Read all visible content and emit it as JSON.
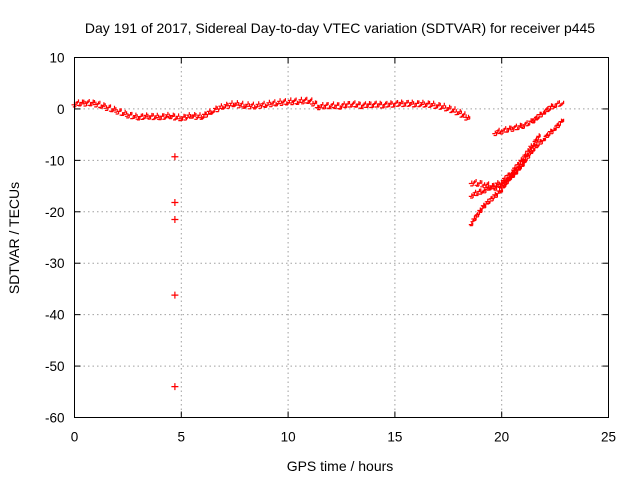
{
  "chart_data": {
    "type": "scatter",
    "title": "Day 191 of 2017, Sidereal Day-to-day VTEC variation (SDTVAR) for receiver p445",
    "xlabel": "GPS time / hours",
    "ylabel": "SDTVAR / TECUs",
    "xlim": [
      0,
      25
    ],
    "ylim": [
      -60,
      10
    ],
    "x_ticks": [
      0,
      5,
      10,
      15,
      20,
      25
    ],
    "y_ticks": [
      10,
      0,
      -10,
      -20,
      -30,
      -40,
      -50,
      -60
    ],
    "grid": true,
    "marker": "+",
    "series": [
      {
        "name": "SDTVAR",
        "color": "#ff0000",
        "segments": [
          {
            "points": [
              [
                0,
                0.8
              ],
              [
                0.5,
                1.0
              ],
              [
                1,
                0.9
              ],
              [
                1.5,
                0.2
              ],
              [
                2,
                -0.5
              ],
              [
                2.5,
                -1.3
              ],
              [
                3,
                -1.8
              ],
              [
                3.5,
                -1.6
              ],
              [
                4,
                -1.8
              ],
              [
                4.5,
                -1.5
              ],
              [
                5,
                -2.0
              ],
              [
                5.5,
                -1.5
              ],
              [
                6,
                -1.7
              ],
              [
                6.5,
                -0.5
              ],
              [
                7,
                0.3
              ],
              [
                7.5,
                0.8
              ],
              [
                8,
                0.5
              ],
              [
                8.5,
                0.4
              ],
              [
                9,
                0.7
              ],
              [
                9.5,
                1.0
              ],
              [
                10,
                1.2
              ],
              [
                10.5,
                1.3
              ],
              [
                11,
                1.5
              ],
              [
                11.5,
                0.3
              ],
              [
                12,
                0.5
              ],
              [
                12.5,
                0.4
              ],
              [
                13,
                0.8
              ],
              [
                13.5,
                0.5
              ],
              [
                14,
                0.7
              ],
              [
                14.5,
                0.6
              ],
              [
                15,
                0.8
              ],
              [
                15.5,
                0.9
              ],
              [
                16,
                0.8
              ],
              [
                16.5,
                0.8
              ],
              [
                17,
                0.5
              ],
              [
                17.5,
                0.0
              ],
              [
                18,
                -0.8
              ],
              [
                18.5,
                -2.0
              ]
            ]
          },
          {
            "points": [
              [
                19.7,
                -4.8
              ],
              [
                20,
                -4.5
              ],
              [
                20.5,
                -4.0
              ],
              [
                21,
                -3.5
              ],
              [
                21.5,
                -2.5
              ],
              [
                22,
                -0.8
              ],
              [
                22.5,
                0.6
              ],
              [
                22.9,
                1.0
              ]
            ]
          },
          {
            "points": [
              [
                18.6,
                -22.5
              ],
              [
                19.2,
                -19.0
              ],
              [
                20,
                -16.0
              ],
              [
                20.5,
                -13.0
              ],
              [
                21,
                -11.0
              ],
              [
                21.5,
                -8.0
              ],
              [
                22,
                -6.0
              ],
              [
                22.5,
                -4.0
              ],
              [
                22.9,
                -2.5
              ]
            ]
          },
          {
            "points": [
              [
                18.6,
                -17.0
              ],
              [
                19.2,
                -16.0
              ],
              [
                20,
                -14.5
              ],
              [
                20.5,
                -12.5
              ],
              [
                21,
                -10.0
              ],
              [
                21.5,
                -7.0
              ],
              [
                21.8,
                -5.5
              ]
            ]
          },
          {
            "points": [
              [
                18.6,
                -14.5
              ],
              [
                19.2,
                -14.8
              ],
              [
                19.7,
                -15.5
              ],
              [
                20.2,
                -14.5
              ],
              [
                20.7,
                -12.5
              ],
              [
                21.1,
                -10.5
              ]
            ]
          }
        ],
        "outliers": [
          [
            4.7,
            -9.3
          ],
          [
            4.7,
            -18.2
          ],
          [
            4.7,
            -21.5
          ],
          [
            4.7,
            -36.2
          ],
          [
            4.7,
            -54.0
          ]
        ]
      }
    ]
  }
}
